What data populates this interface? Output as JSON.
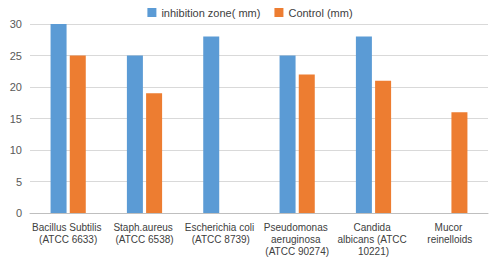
{
  "chart_data": {
    "type": "bar",
    "categories": [
      "Bacillus Subtilis (ATCC 6633)",
      "Staph.aureus (ATCC 6538)",
      "Escherichia coli (ATCC 8739)",
      "Pseudomonas aeruginosa (ATCC 90274)",
      "Candida albicans (ATCC 10221)",
      "Mucor reinelloids"
    ],
    "series": [
      {
        "name": "inhibition zone( mm)",
        "color": "#5b9bd5",
        "values": [
          30,
          25,
          28,
          25,
          28,
          0
        ]
      },
      {
        "name": "Control (mm)",
        "color": "#ed7d31",
        "values": [
          25,
          19,
          0,
          22,
          21,
          16
        ]
      }
    ],
    "ylim": [
      0,
      30
    ],
    "yticks": [
      0,
      5,
      10,
      15,
      20,
      25,
      30
    ],
    "grid": true,
    "legend": "top"
  }
}
